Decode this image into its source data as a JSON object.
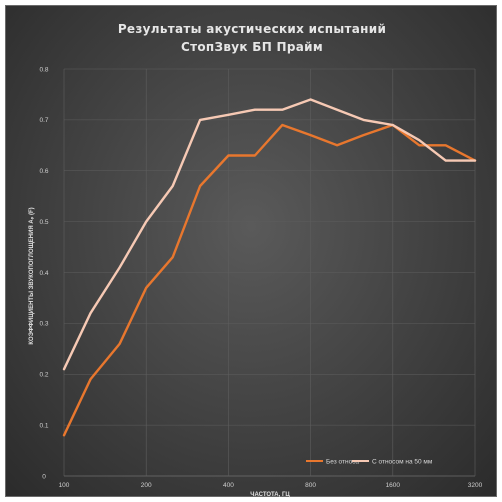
{
  "chart_data": {
    "type": "line",
    "title": "Результаты акустических испытаний",
    "subtitle": "СтопЗвук БП Прайм",
    "xlabel": "ЧАСТОТА, ГЦ",
    "ylabel": "КОЭФФИЦИЕНТЫ ЗВУКОПОГЛОЩЕНИЯ Aₚ (F)",
    "x": [
      100,
      125,
      160,
      200,
      250,
      315,
      400,
      500,
      630,
      800,
      1000,
      1250,
      1600,
      2000,
      2500,
      3200
    ],
    "x_tick_labels": [
      "100",
      "200",
      "400",
      "800",
      "1600",
      "3200"
    ],
    "y_tick_labels": [
      "0",
      "0.1",
      "0.2",
      "0.3",
      "0.4",
      "0.5",
      "0.6",
      "0.7",
      "0.8"
    ],
    "ylim": [
      0,
      0.8
    ],
    "xscale": "log",
    "grid": true,
    "legend_position": "bottom-right",
    "series": [
      {
        "name": "Без относа",
        "color": "#e8772e",
        "values": [
          0.08,
          0.19,
          0.26,
          0.37,
          0.43,
          0.57,
          0.63,
          0.63,
          0.69,
          0.67,
          0.65,
          0.67,
          0.69,
          0.65,
          0.65,
          0.62
        ]
      },
      {
        "name": "С относом на 50 мм",
        "color": "#f6c9b4",
        "values": [
          0.21,
          0.32,
          0.41,
          0.5,
          0.57,
          0.7,
          0.71,
          0.72,
          0.72,
          0.74,
          0.72,
          0.7,
          0.69,
          0.66,
          0.62,
          0.62
        ]
      }
    ]
  }
}
